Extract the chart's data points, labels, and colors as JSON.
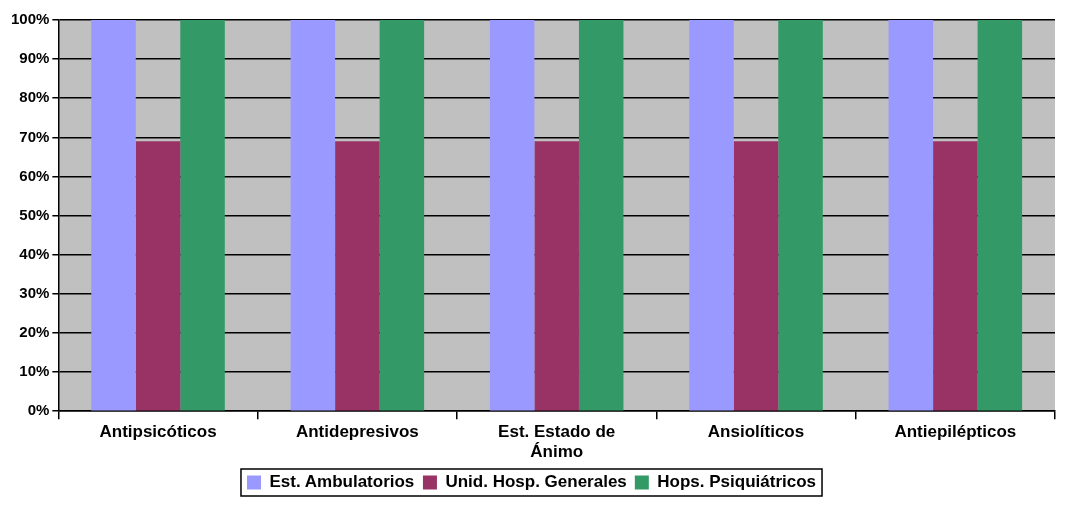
{
  "chart_data": {
    "type": "bar",
    "categories": [
      "Antipsicóticos",
      "Antidepresivos",
      "Est. Estado de Ánimo",
      "Ansiolíticos",
      "Antiepilépticos"
    ],
    "series": [
      {
        "name": "Est. Ambulatorios",
        "color": "#9999ff",
        "values": [
          100,
          100,
          100,
          100,
          100
        ]
      },
      {
        "name": "Unid. Hosp. Generales",
        "color": "#993366",
        "values": [
          69,
          69,
          69,
          69,
          69
        ]
      },
      {
        "name": "Hops. Psiquiátricos",
        "color": "#339966",
        "values": [
          100,
          100,
          100,
          100,
          100
        ]
      }
    ],
    "ylim": [
      0,
      100
    ],
    "yticks": [
      {
        "value": 0,
        "label": "0%"
      },
      {
        "value": 10,
        "label": "10%"
      },
      {
        "value": 20,
        "label": "20%"
      },
      {
        "value": 30,
        "label": "30%"
      },
      {
        "value": 40,
        "label": "40%"
      },
      {
        "value": 50,
        "label": "50%"
      },
      {
        "value": 60,
        "label": "60%"
      },
      {
        "value": 70,
        "label": "70%"
      },
      {
        "value": 80,
        "label": "80%"
      },
      {
        "value": 90,
        "label": "90%"
      },
      {
        "value": 100,
        "label": "100%"
      }
    ],
    "grid": "y",
    "legend": "bottom"
  }
}
